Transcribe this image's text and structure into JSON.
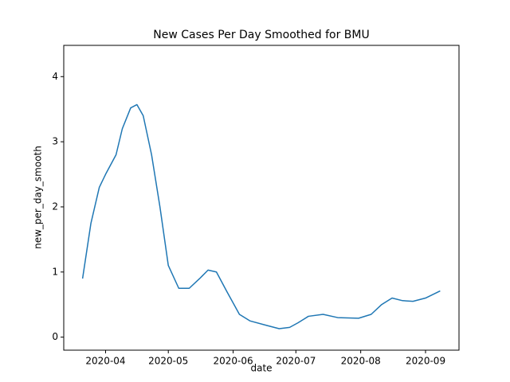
{
  "chart_data": {
    "type": "line",
    "title": "New Cases Per Day Smoothed for BMU",
    "xlabel": "date",
    "ylabel": "new_per_day_smooth",
    "x": [
      18342,
      18346,
      18350,
      18353,
      18358,
      18361,
      18365,
      18368,
      18371,
      18375,
      18379,
      18383,
      18388,
      18393,
      18398,
      18402,
      18406,
      18411,
      18417,
      18422,
      18430,
      18436,
      18441,
      18445,
      18450,
      18457,
      18464,
      18474,
      18480,
      18485,
      18490,
      18495,
      18500,
      18506,
      18513
    ],
    "series": [
      {
        "name": "new_per_day_smooth",
        "color": "#1f77b4",
        "values": [
          0.9,
          1.75,
          2.3,
          2.5,
          2.8,
          3.2,
          3.52,
          3.57,
          3.4,
          2.8,
          2.0,
          1.1,
          0.75,
          0.75,
          0.9,
          1.03,
          1.0,
          0.7,
          0.35,
          0.25,
          0.18,
          0.13,
          0.15,
          0.22,
          0.32,
          0.35,
          0.3,
          0.29,
          0.35,
          0.5,
          0.6,
          0.56,
          0.55,
          0.6,
          0.71
        ]
      }
    ],
    "xlim": [
      18333,
      18522
    ],
    "ylim": [
      -0.2,
      4.48
    ],
    "xticks": [
      {
        "value": 18353,
        "label": "2020-04"
      },
      {
        "value": 18383,
        "label": "2020-05"
      },
      {
        "value": 18414,
        "label": "2020-06"
      },
      {
        "value": 18444,
        "label": "2020-07"
      },
      {
        "value": 18475,
        "label": "2020-08"
      },
      {
        "value": 18506,
        "label": "2020-09"
      }
    ],
    "yticks": [
      0,
      1,
      2,
      3,
      4
    ],
    "grid": false
  }
}
